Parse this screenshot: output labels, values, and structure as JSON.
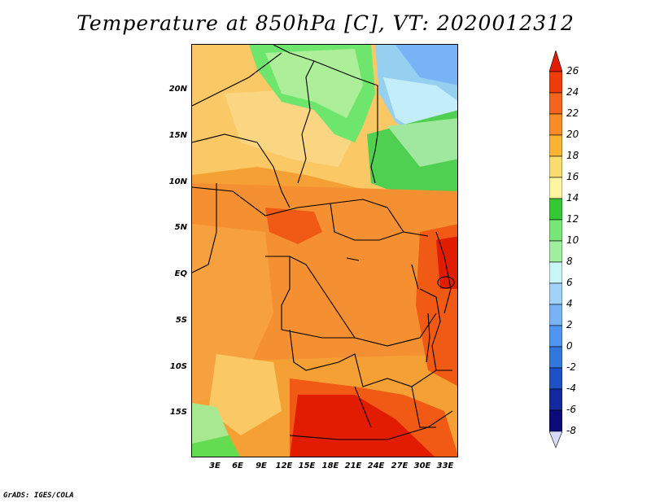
{
  "title": "Temperature at 850hPa [C], VT: 2020012312",
  "credit": "GrADS: IGES/COLA",
  "axes": {
    "lat_labels": [
      "20N",
      "15N",
      "10N",
      "5N",
      "EQ",
      "5S",
      "10S",
      "15S"
    ],
    "lon_labels": [
      "3E",
      "6E",
      "9E",
      "12E",
      "15E",
      "18E",
      "21E",
      "24E",
      "27E",
      "30E",
      "33E"
    ]
  },
  "colorbar": {
    "labels": [
      "26",
      "24",
      "22",
      "20",
      "18",
      "16",
      "14",
      "12",
      "10",
      "8",
      "6",
      "4",
      "2",
      "0",
      "-2",
      "-4",
      "-6",
      "-8"
    ],
    "colors": [
      "#e11c00",
      "#f03c0a",
      "#f5641e",
      "#fa8c28",
      "#fab432",
      "#fadc6e",
      "#fff5a0",
      "#35c835",
      "#78e678",
      "#a0f0a0",
      "#c8f5f5",
      "#a0d2fa",
      "#78b4f5",
      "#5096f0",
      "#3278dc",
      "#1e50c8",
      "#1428a0",
      "#0a0a78"
    ],
    "over_color": "#e11c00",
    "under_color": "#d8d8f8"
  },
  "map_layers": {
    "background": "#f5a034",
    "regions": [
      {
        "name": "sahara-warm",
        "color": "#fac864"
      },
      {
        "name": "sahel-green",
        "color": "#6ee66e"
      },
      {
        "name": "egypt-cool",
        "color": "#96d0f0"
      },
      {
        "name": "northeast-green",
        "color": "#50d050"
      },
      {
        "name": "central-orange",
        "color": "#f59032"
      },
      {
        "name": "southern-hot",
        "color": "#e62800"
      },
      {
        "name": "southwest-green",
        "color": "#64dc50"
      },
      {
        "name": "east-hot",
        "color": "#f05a14"
      }
    ]
  }
}
